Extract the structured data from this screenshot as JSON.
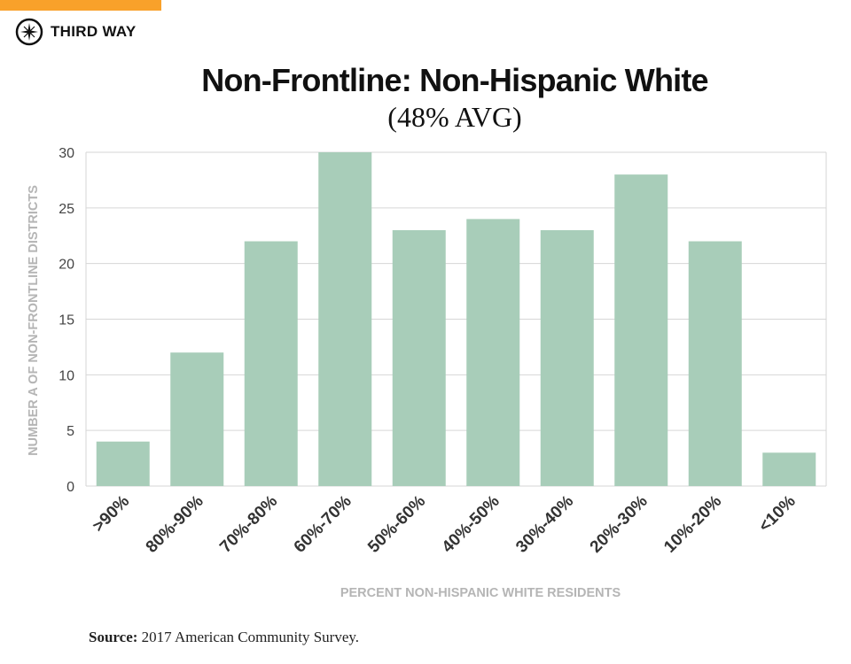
{
  "brand": {
    "name": "THIRD WAY",
    "accent": "#f9a12a"
  },
  "chart_data": {
    "type": "bar",
    "title": "Non-Frontline: Non-Hispanic White",
    "subtitle": "(48% AVG)",
    "xlabel": "PERCENT NON-HISPANIC WHITE RESIDENTS",
    "ylabel": "NUMBER A OF NON-FRONTLINE DISTRICTS",
    "categories": [
      ">90%",
      "80%-90%",
      "70%-80%",
      "60%-70%",
      "50%-60%",
      "40%-50%",
      "30%-40%",
      "20%-30%",
      "10%-20%",
      "<10%"
    ],
    "values": [
      4,
      12,
      22,
      30,
      23,
      24,
      23,
      28,
      22,
      3
    ],
    "ylim": [
      0,
      30
    ],
    "yticks": [
      0,
      5,
      10,
      15,
      20,
      25,
      30
    ],
    "grid": true,
    "bar_color": "#a8cdb9"
  },
  "source": {
    "label": "Source:",
    "text": " 2017 American Community Survey."
  }
}
